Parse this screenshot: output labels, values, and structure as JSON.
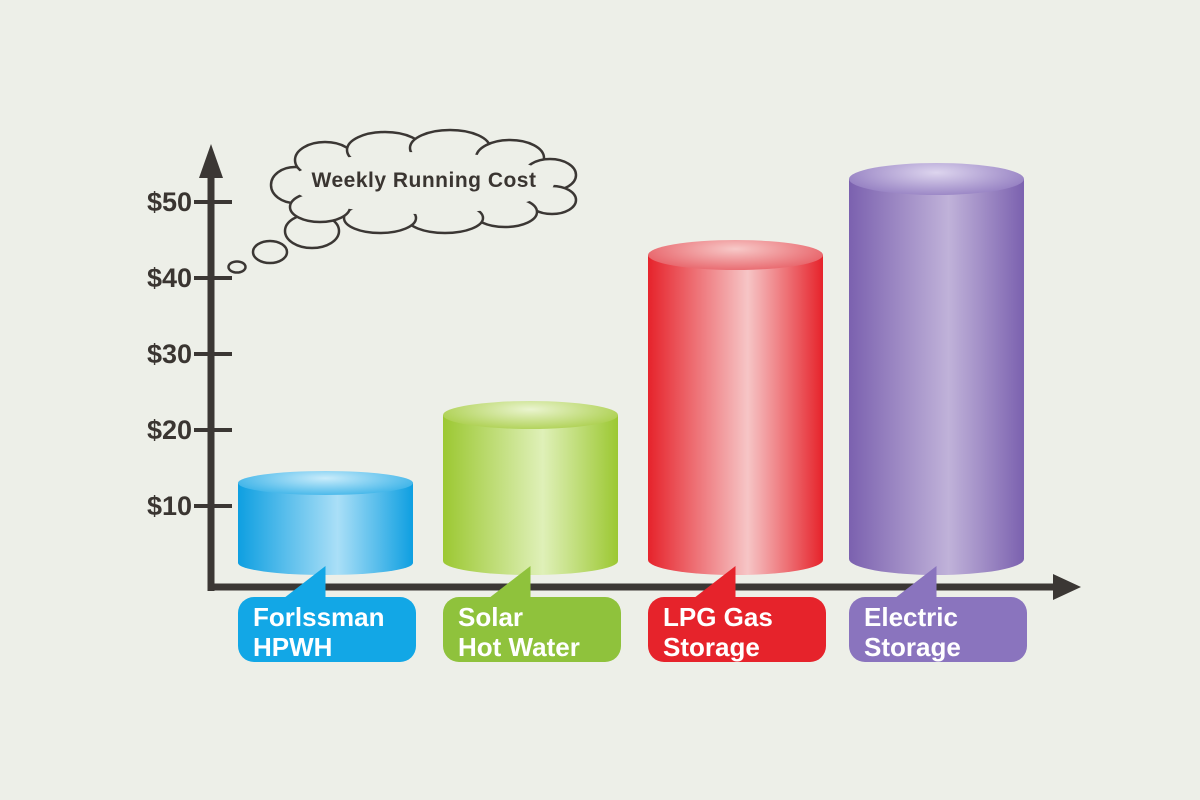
{
  "canvas": {
    "background": "#edefe8",
    "axis_color": "#3b3734",
    "text_color": "#3a3531",
    "title_bubble_style": "thought-cloud"
  },
  "chart_data": {
    "type": "bar",
    "bar_style": "3d-cylinder",
    "title": "Weekly Running Cost",
    "categories": [
      "Forlssman HPWH",
      "Solar Hot Water",
      "LPG Gas Storage",
      "Electric Storage"
    ],
    "category_label_lines": [
      [
        "Forlssman",
        "HPWH"
      ],
      [
        "Solar",
        "Hot Water"
      ],
      [
        "LPG Gas",
        "Storage"
      ],
      [
        "Electric",
        "Storage"
      ]
    ],
    "values": [
      13,
      22,
      43,
      53
    ],
    "value_prefix": "$",
    "xlabel": "",
    "ylabel": "",
    "ytick_labels": [
      "$10",
      "$20",
      "$30",
      "$40",
      "$50"
    ],
    "ytick_values": [
      10,
      20,
      30,
      40,
      50
    ],
    "ylim": [
      0,
      57
    ],
    "grid": false,
    "legend": false,
    "series_colors": [
      {
        "name": "blue",
        "edge": "#0e9fe1",
        "body_light": "#aadff7",
        "top_light": "#c9ecfb",
        "top_mid": "#2aace6",
        "label_box": "#12a7e6"
      },
      {
        "name": "green",
        "edge": "#9cc832",
        "body_light": "#dff0b8",
        "top_light": "#eaf4cf",
        "top_mid": "#a4cb3e",
        "label_box": "#8fc23c"
      },
      {
        "name": "red",
        "edge": "#e6232b",
        "body_light": "#f6c5c6",
        "top_light": "#f7c9c8",
        "top_mid": "#e6555c",
        "label_box": "#e6232b"
      },
      {
        "name": "purple",
        "edge": "#7b61af",
        "body_light": "#c0b2d9",
        "top_light": "#ddd5ee",
        "top_mid": "#8b74bc",
        "label_box": "#8a74be"
      }
    ]
  }
}
